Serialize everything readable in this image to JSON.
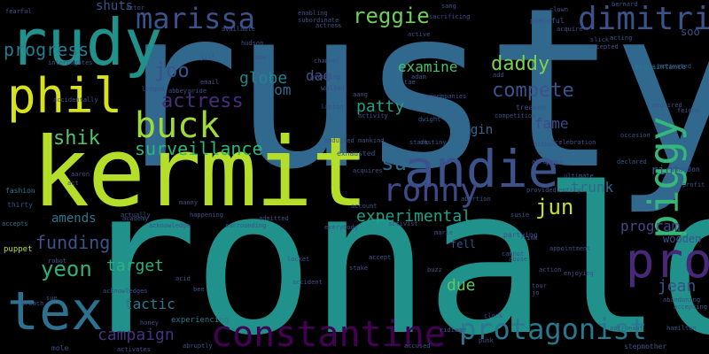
{
  "words": [
    {
      "text": "rusty",
      "color": "#31688e"
    },
    {
      "text": "ronald",
      "color": "#21918c"
    },
    {
      "text": "kermit",
      "color": "#b5de2b"
    },
    {
      "text": "andie",
      "color": "#3b528b"
    },
    {
      "text": "constantine",
      "color": "#440154"
    },
    {
      "text": "protagonist",
      "color": "#2a788e"
    },
    {
      "text": "rudy",
      "color": "#21918c"
    },
    {
      "text": "phil",
      "color": "#d8e219"
    },
    {
      "text": "marissa",
      "color": "#3b528b"
    },
    {
      "text": "dimitri",
      "color": "#3b528b"
    },
    {
      "text": "tex",
      "color": "#2c728e"
    },
    {
      "text": "pro",
      "color": "#482878"
    },
    {
      "text": "piggy",
      "color": "#35b779"
    },
    {
      "text": "buck",
      "color": "#a0da39"
    },
    {
      "text": "ronny",
      "color": "#3e4989"
    },
    {
      "text": "reggie",
      "color": "#6ece58"
    },
    {
      "text": "progress",
      "color": "#2a788e"
    },
    {
      "text": "joo",
      "color": "#3b528b"
    },
    {
      "text": "actress",
      "color": "#472d7b"
    },
    {
      "text": "daddy",
      "color": "#7ad151"
    },
    {
      "text": "compete",
      "color": "#3b528b"
    },
    {
      "text": "surveillance",
      "color": "#2fb47c"
    },
    {
      "text": "shik",
      "color": "#54c568"
    },
    {
      "text": "su",
      "color": "#31688e"
    },
    {
      "text": "jun",
      "color": "#c5e021"
    },
    {
      "text": "experimental",
      "color": "#1fa187"
    },
    {
      "text": "funding",
      "color": "#3b528b"
    },
    {
      "text": "yeon",
      "color": "#2db27d"
    },
    {
      "text": "target",
      "color": "#2db27d"
    },
    {
      "text": "campaign",
      "color": "#46337e"
    },
    {
      "text": "jean",
      "color": "#3b528b"
    },
    {
      "text": "due",
      "color": "#5ec962"
    },
    {
      "text": "tactic",
      "color": "#2a788e"
    },
    {
      "text": "program",
      "color": "#3e4989"
    },
    {
      "text": "trunk",
      "color": "#31688e"
    },
    {
      "text": "examine",
      "color": "#4ac16d"
    },
    {
      "text": "patty",
      "color": "#1fa187"
    },
    {
      "text": "globe",
      "color": "#26828e"
    },
    {
      "text": "prom",
      "color": "#31688e"
    },
    {
      "text": "fame",
      "color": "#3e4989"
    },
    {
      "text": "begin",
      "color": "#31688e"
    },
    {
      "text": "dae",
      "color": "#3b528b"
    },
    {
      "text": "shuts",
      "color": "#3b528b"
    },
    {
      "text": "amends",
      "color": "#2a788e"
    },
    {
      "text": "wooden",
      "color": "#3b528b"
    },
    {
      "text": "fell",
      "color": "#3b528b"
    },
    {
      "text": "riot",
      "color": "#3b528b"
    },
    {
      "text": "soo",
      "color": "#3b528b"
    },
    {
      "text": "puppet",
      "color": "#b5de2b"
    },
    {
      "text": "thirty",
      "color": "#3b528b"
    },
    {
      "text": "fashion",
      "color": "#2a788e"
    },
    {
      "text": "accepts",
      "color": "#2a788e"
    },
    {
      "text": "robot",
      "color": "#3b528b"
    },
    {
      "text": "acid",
      "color": "#3b528b"
    },
    {
      "text": "honey",
      "color": "#3b528b"
    },
    {
      "text": "mole",
      "color": "#3b528b"
    },
    {
      "text": "activates",
      "color": "#3b528b"
    },
    {
      "text": "abruptly",
      "color": "#3b528b"
    },
    {
      "text": "experiencing",
      "color": "#2a788e"
    },
    {
      "text": "accused",
      "color": "#3b528b"
    },
    {
      "text": "stepmother",
      "color": "#3b528b"
    },
    {
      "text": "hamilton",
      "color": "#3b528b"
    },
    {
      "text": "astronaut",
      "color": "#3b528b"
    },
    {
      "text": "accepting",
      "color": "#3b528b"
    },
    {
      "text": "abandoning",
      "color": "#3b528b"
    },
    {
      "text": "abandon",
      "color": "#3b528b"
    },
    {
      "text": "declared",
      "color": "#3b528b"
    },
    {
      "text": "profit",
      "color": "#3b528b"
    },
    {
      "text": "occasion",
      "color": "#3b528b"
    },
    {
      "text": "acquired",
      "color": "#3b528b"
    },
    {
      "text": "feigns",
      "color": "#3b528b"
    },
    {
      "text": "acquaintance",
      "color": "#2a788e"
    },
    {
      "text": "accepted",
      "color": "#3b528b"
    },
    {
      "text": "acting",
      "color": "#3b528b"
    },
    {
      "text": "peaceful",
      "color": "#3b528b"
    },
    {
      "text": "clown",
      "color": "#3b528b"
    },
    {
      "text": "acquire",
      "color": "#3b528b"
    },
    {
      "text": "treason",
      "color": "#3b528b"
    },
    {
      "text": "competition",
      "color": "#3b528b"
    },
    {
      "text": "celebration",
      "color": "#3b528b"
    },
    {
      "text": "abraham",
      "color": "#3b528b"
    },
    {
      "text": "papa",
      "color": "#3b528b"
    },
    {
      "text": "entity",
      "color": "#3b528b"
    },
    {
      "text": "provided",
      "color": "#3b528b"
    },
    {
      "text": "ultimate",
      "color": "#3b528b"
    },
    {
      "text": "appointment",
      "color": "#3b528b"
    },
    {
      "text": "enjoying",
      "color": "#3b528b"
    },
    {
      "text": "action",
      "color": "#3b528b"
    },
    {
      "text": "abuse",
      "color": "#3b528b"
    },
    {
      "text": "partying",
      "color": "#3b528b"
    },
    {
      "text": "abortion",
      "color": "#3b528b"
    },
    {
      "text": "susie",
      "color": "#3b528b"
    },
    {
      "text": "exhausted",
      "color": "#3b528b"
    },
    {
      "text": "acquires",
      "color": "#3b528b"
    },
    {
      "text": "account",
      "color": "#3b528b"
    },
    {
      "text": "activist",
      "color": "#3b528b"
    },
    {
      "text": "everybody",
      "color": "#3b528b"
    },
    {
      "text": "admitted",
      "color": "#3b528b"
    },
    {
      "text": "surrounding",
      "color": "#3b528b"
    },
    {
      "text": "happening",
      "color": "#3b528b"
    },
    {
      "text": "acknowledge",
      "color": "#3b528b"
    },
    {
      "text": "acknowledges",
      "color": "#3b528b"
    },
    {
      "text": "academy",
      "color": "#3b528b"
    },
    {
      "text": "abducted",
      "color": "#3b528b"
    },
    {
      "text": "mankind",
      "color": "#3b528b"
    },
    {
      "text": "destiny",
      "color": "#3b528b"
    },
    {
      "text": "accompanies",
      "color": "#3b528b"
    },
    {
      "text": "accusing",
      "color": "#3b528b"
    },
    {
      "text": "walker",
      "color": "#3b528b"
    },
    {
      "text": "laptop",
      "color": "#3b528b"
    },
    {
      "text": "activity",
      "color": "#3b528b"
    },
    {
      "text": "accidentally",
      "color": "#3b528b"
    },
    {
      "text": "lodged",
      "color": "#3b528b"
    },
    {
      "text": "abbey",
      "color": "#3b528b"
    },
    {
      "text": "pride",
      "color": "#3b528b"
    },
    {
      "text": "email",
      "color": "#3b528b"
    },
    {
      "text": "interrogates",
      "color": "#3b528b"
    },
    {
      "text": "channel",
      "color": "#3b528b"
    },
    {
      "text": "hudson",
      "color": "#3b528b"
    },
    {
      "text": "abe",
      "color": "#3b528b"
    },
    {
      "text": "available",
      "color": "#3b528b"
    },
    {
      "text": "enabling",
      "color": "#3b528b"
    },
    {
      "text": "subordinate",
      "color": "#3b528b"
    },
    {
      "text": "actress",
      "color": "#3b528b"
    },
    {
      "text": "sacrificing",
      "color": "#3b528b"
    },
    {
      "text": "sang",
      "color": "#3b528b"
    },
    {
      "text": "bernard",
      "color": "#3b528b"
    },
    {
      "text": "actor",
      "color": "#3b528b"
    },
    {
      "text": "fearful",
      "color": "#3b528b"
    },
    {
      "text": "active",
      "color": "#3b528b"
    },
    {
      "text": "tae",
      "color": "#3b528b"
    },
    {
      "text": "stark",
      "color": "#3b528b"
    },
    {
      "text": "marie",
      "color": "#3b528b"
    },
    {
      "text": "buzz",
      "color": "#3b528b"
    },
    {
      "text": "accident",
      "color": "#3b528b"
    },
    {
      "text": "locket",
      "color": "#3b528b"
    },
    {
      "text": "accept",
      "color": "#3b528b"
    },
    {
      "text": "stake",
      "color": "#3b528b"
    },
    {
      "text": "ace",
      "color": "#3b528b"
    },
    {
      "text": "add",
      "color": "#3b528b"
    },
    {
      "text": "sue",
      "color": "#3b528b"
    },
    {
      "text": "breach",
      "color": "#3b528b"
    },
    {
      "text": "cannot",
      "color": "#3b528b"
    },
    {
      "text": "slick",
      "color": "#3b528b"
    },
    {
      "text": "link",
      "color": "#3b528b"
    },
    {
      "text": "actual",
      "color": "#3b528b"
    },
    {
      "text": "actually",
      "color": "#3b528b"
    },
    {
      "text": "manny",
      "color": "#3b528b"
    },
    {
      "text": "bee",
      "color": "#3b528b"
    },
    {
      "text": "punk",
      "color": "#3b528b"
    },
    {
      "text": "dwight",
      "color": "#3b528b"
    },
    {
      "text": "tour",
      "color": "#3b528b"
    },
    {
      "text": "jo",
      "color": "#3b528b"
    },
    {
      "text": "act",
      "color": "#3b528b"
    },
    {
      "text": "aaron",
      "color": "#3b528b"
    },
    {
      "text": "jill",
      "color": "#3b528b"
    },
    {
      "text": "aang",
      "color": "#3b528b"
    },
    {
      "text": "adam",
      "color": "#3b528b"
    },
    {
      "text": "clock",
      "color": "#3b528b"
    },
    {
      "text": "activated",
      "color": "#3b528b"
    },
    {
      "text": "riding",
      "color": "#3b528b"
    },
    {
      "text": "exceptional",
      "color": "#3b528b"
    },
    {
      "text": "dimitri",
      "color": "#3b528b"
    },
    {
      "text": "abuse",
      "color": "#3b528b"
    }
  ]
}
